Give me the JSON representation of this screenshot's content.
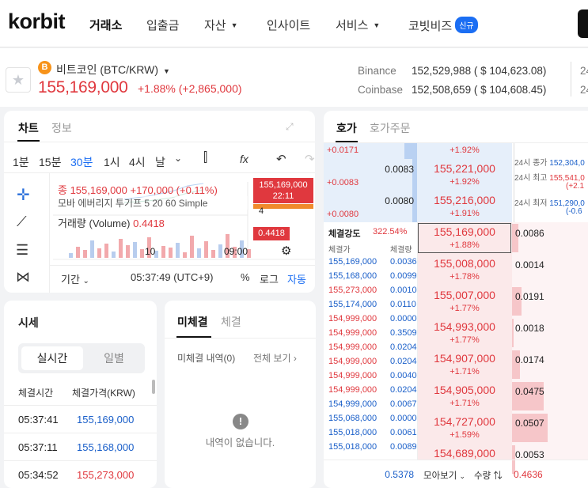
{
  "header": {
    "logo": "korbit",
    "nav": [
      "거래소",
      "입출금",
      "자산",
      "인사이트",
      "서비스",
      "코빗비즈"
    ],
    "badge": "신규"
  },
  "coin": {
    "name": "비트코인 (BTC/KRW)",
    "price": "155,169,000",
    "change": "+1.88% (+2,865,000)",
    "star": "★",
    "btc_symbol": "B",
    "exchanges": [
      {
        "name": "Binance",
        "value": "152,529,988 ( $ 104,623.08)"
      },
      {
        "name": "Coinbase",
        "value": "152,508,659 ( $ 104,608.45)"
      }
    ],
    "cut": [
      "24",
      "24"
    ]
  },
  "chart": {
    "tabs": [
      "차트",
      "정보"
    ],
    "intervals": [
      "1분",
      "15분",
      "30분",
      "1시",
      "4시",
      "날"
    ],
    "ma_line": "종 155,169,000 +170,000 (+0.11%)",
    "sma_line": "모바 에버리지 투기프 5 20 60 Simple",
    "volume_label": "거래량 (Volume)",
    "volume_value": "0.4418",
    "price_tag": "155,169,000",
    "time_tag": "22:11",
    "tag2": "155,169,000",
    "tag_small": "4",
    "vol_tag": "0.4418",
    "x_ticks": [
      "10",
      "09:00"
    ],
    "footer": {
      "period": "기간",
      "clock": "05:37:49 (UTC+9)",
      "pct": "%",
      "log": "로그",
      "auto": "자동"
    },
    "fx": "fx"
  },
  "market": {
    "title": "시세",
    "toggle": [
      "실시간",
      "일별"
    ],
    "headers": [
      "체결시간",
      "체결가격(KRW)"
    ],
    "rows": [
      {
        "time": "05:37:41",
        "price": "155,169,000",
        "color": "#1a5fc9"
      },
      {
        "time": "05:37:11",
        "price": "155,168,000",
        "color": "#1a5fc9"
      },
      {
        "time": "05:34:52",
        "price": "155,273,000",
        "color": "#e0383e"
      }
    ]
  },
  "orders": {
    "tabs": [
      "미체결",
      "체결"
    ],
    "label": "미체결 내역(0)",
    "view_all": "전체 보기",
    "empty": "내역이 없습니다."
  },
  "book": {
    "tabs": [
      "호가",
      "호가주문"
    ],
    "asks": [
      {
        "price": "",
        "pct": "+1.92%",
        "qty": "0.0171",
        "left": "+0.0171",
        "vol": ""
      },
      {
        "price": "155,221,000",
        "pct": "+1.92%",
        "qty": "+0.0083",
        "vol": "0.0083"
      },
      {
        "price": "155,216,000",
        "pct": "+1.91%",
        "qty": "+0.0080",
        "vol": "0.0080"
      }
    ],
    "info": [
      {
        "k": "24시 종가",
        "v": "152,304,0"
      },
      {
        "k": "24시 최고",
        "v": "155,541,0",
        "sub": "(+2.1"
      },
      {
        "k": "24시 최저",
        "v": "151,290,0",
        "sub": "(-0.6"
      }
    ],
    "strength_label": "체결강도",
    "strength": "322.54%",
    "tr_headers": [
      "체결가",
      "체결량"
    ],
    "trades": [
      [
        "155,169,000",
        "0.0036"
      ],
      [
        "155,168,000",
        "0.0099"
      ],
      [
        "155,273,000",
        "0.0010"
      ],
      [
        "155,174,000",
        "0.0110"
      ],
      [
        "154,999,000",
        "0.0000"
      ],
      [
        "154,999,000",
        "0.3509"
      ],
      [
        "154,999,000",
        "0.0204"
      ],
      [
        "154,999,000",
        "0.0204"
      ],
      [
        "154,999,000",
        "0.0040"
      ],
      [
        "154,999,000",
        "0.0204"
      ],
      [
        "154,999,000",
        "0.0067"
      ],
      [
        "155,068,000",
        "0.0000"
      ],
      [
        "155,018,000",
        "0.0061"
      ],
      [
        "155,018,000",
        "0.0089"
      ]
    ],
    "bids": [
      {
        "price": "155,169,000",
        "pct": "+1.88%",
        "qty": "0.0086"
      },
      {
        "price": "155,008,000",
        "pct": "+1.78%",
        "qty": "0.0014"
      },
      {
        "price": "155,007,000",
        "pct": "+1.77%",
        "qty": "0.0191"
      },
      {
        "price": "154,993,000",
        "pct": "+1.77%",
        "qty": "0.0018"
      },
      {
        "price": "154,907,000",
        "pct": "+1.71%",
        "qty": "0.0174"
      },
      {
        "price": "154,905,000",
        "pct": "+1.71%",
        "qty": "0.0475"
      },
      {
        "price": "154,727,000",
        "pct": "+1.59%",
        "qty": "0.0507"
      },
      {
        "price": "154,689,000",
        "pct": "",
        "qty": "0.0053"
      }
    ],
    "footer": {
      "left": "0.5378",
      "mid": "모아보기",
      "qty": "수량",
      "right": "0.4636"
    }
  }
}
